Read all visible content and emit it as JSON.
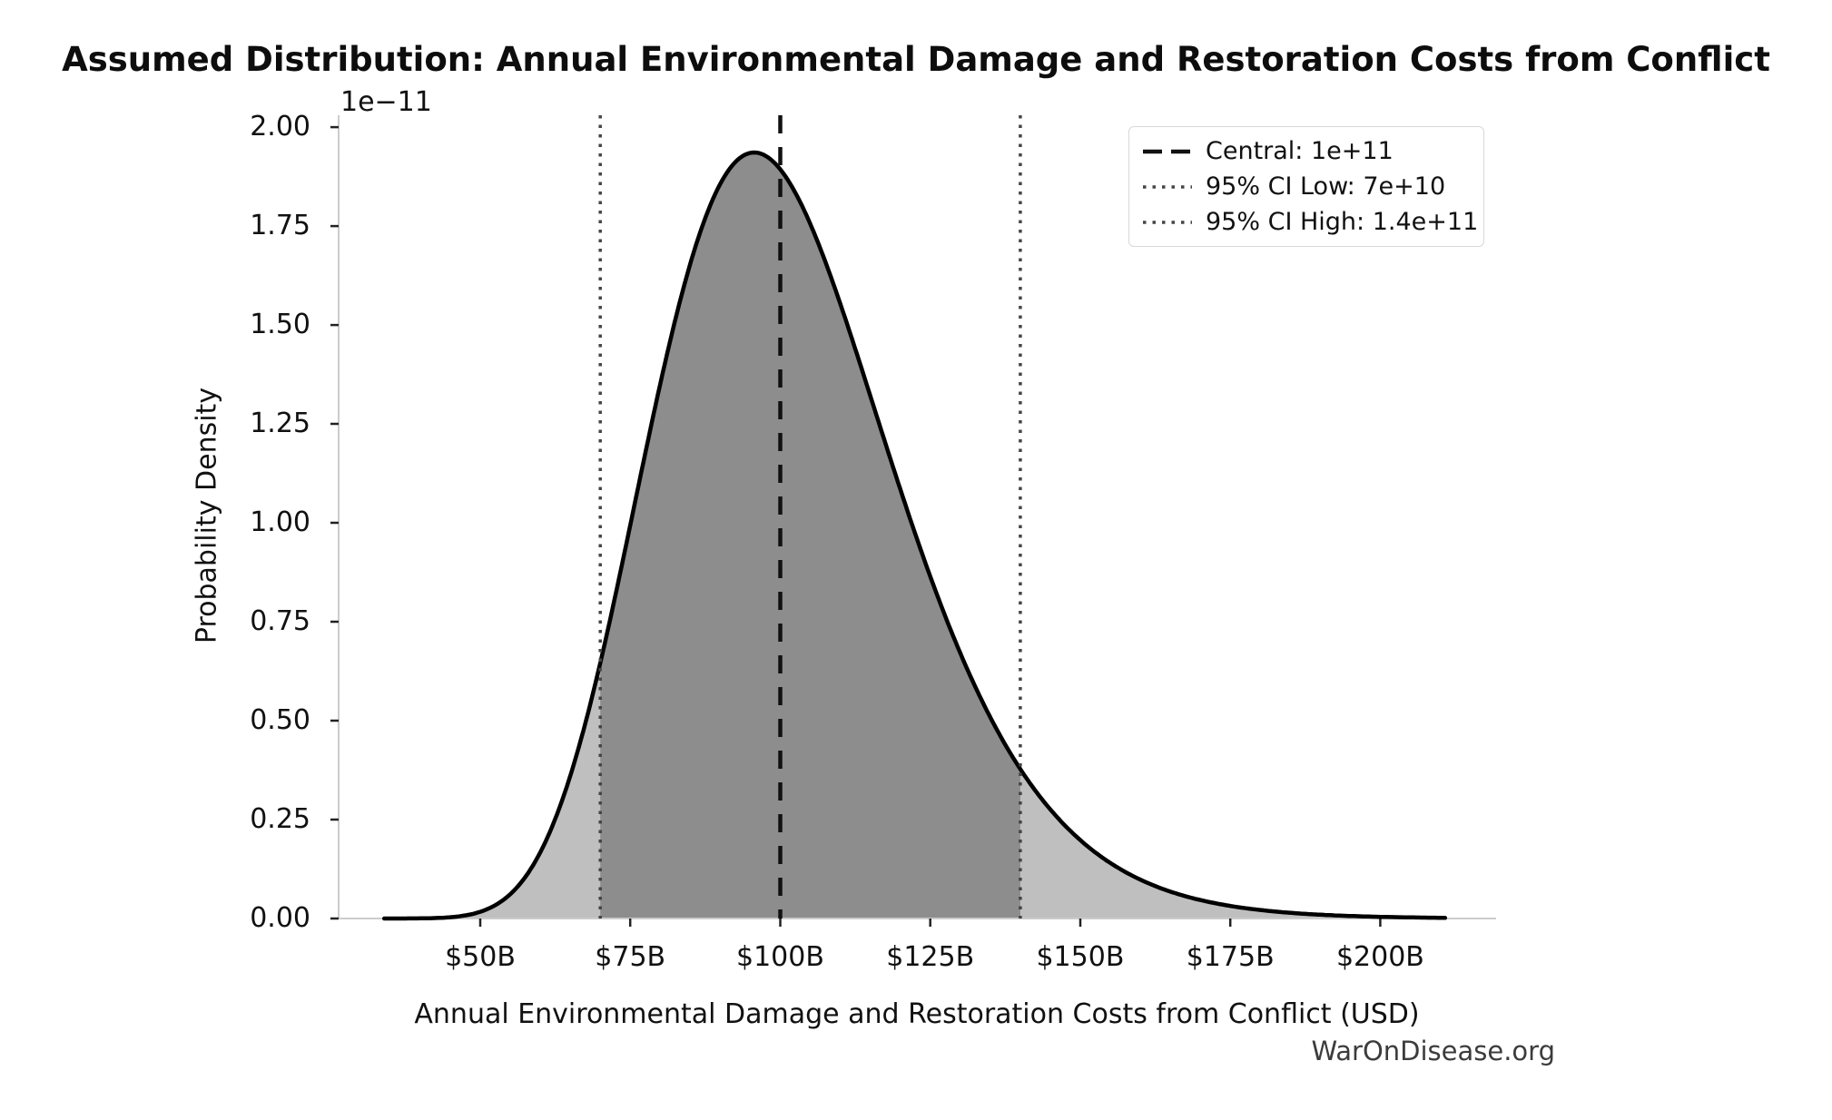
{
  "watermark": "WarOnDisease.org",
  "chart_data": {
    "type": "area",
    "title": "Assumed Distribution: Annual Environmental Damage and Restoration Costs from Conflict",
    "xlabel": "Annual Environmental Damage and Restoration Costs from Conflict (USD)",
    "ylabel": "Probability Density",
    "y_axis_offset_label": "1e−11",
    "grid": false,
    "legend_position": "upper right",
    "x_tick_labels": [
      "$50B",
      "$75B",
      "$100B",
      "$125B",
      "$150B",
      "$175B",
      "$200B"
    ],
    "x_tick_values_billions": [
      50,
      75,
      100,
      125,
      150,
      175,
      200
    ],
    "y_tick_labels": [
      "0.00",
      "0.25",
      "0.50",
      "0.75",
      "1.00",
      "1.25",
      "1.50",
      "1.75",
      "2.00"
    ],
    "y_tick_values_1e11": [
      0,
      0.25,
      0.5,
      0.75,
      1,
      1.25,
      1.5,
      1.75,
      2
    ],
    "xlim_billions": [
      26.4,
      219.3
    ],
    "ylim_1e11": [
      0,
      2.03
    ],
    "distribution": {
      "kind": "lognormal",
      "median_usd": 100000000000.0,
      "sigma_log": 0.2107,
      "mode_billions": 95.7,
      "peak_density_per_usd": 1.94e-11,
      "curve_domain_billions": [
        34,
        211
      ]
    },
    "markers": {
      "central_usd": 100000000000.0,
      "ci_low_usd": 70000000000.0,
      "ci_high_usd": 140000000000.0
    },
    "legend": [
      {
        "label": "Central: 1e+11",
        "line_style": "dashed",
        "color": "#111111"
      },
      {
        "label": "95% CI Low: 7e+10",
        "line_style": "dotted",
        "color": "#454545"
      },
      {
        "label": "95% CI High: 1.4e+11",
        "line_style": "dotted",
        "color": "#454545"
      }
    ],
    "colors": {
      "curve": "#000000",
      "fill_tail": "#bfbfbf",
      "fill_ci": "#8d8d8d",
      "spine": "#cccccc",
      "tick": "#222222",
      "central_line": "#111111",
      "ci_line": "#454545"
    }
  }
}
